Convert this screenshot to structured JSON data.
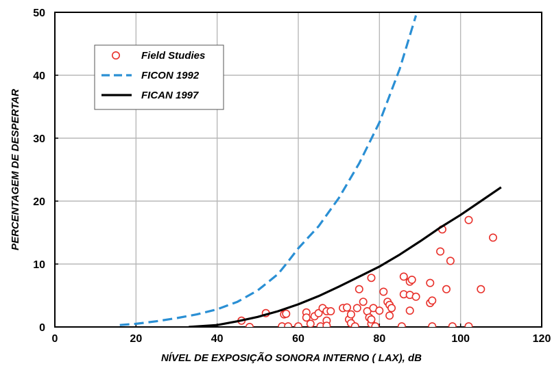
{
  "chart_data": {
    "type": "scatter",
    "xlabel": "NÍVEL DE EXPOSIÇÃO SONORA INTERNO ( LAX), dB",
    "ylabel": "PERCENTAGEM DE DESPERTAR",
    "xlim": [
      0,
      120
    ],
    "ylim": [
      0,
      50
    ],
    "xticks": [
      0,
      20,
      40,
      60,
      80,
      100,
      120
    ],
    "yticks": [
      0,
      10,
      20,
      30,
      40,
      50
    ],
    "grid": true,
    "legend_position": "top-left",
    "series": [
      {
        "name": "Field Studies",
        "kind": "scatter",
        "marker": "open-circle",
        "color": "#e8302a",
        "points": [
          [
            46,
            1.0
          ],
          [
            48,
            0.0
          ],
          [
            52,
            2.2
          ],
          [
            56,
            0.1
          ],
          [
            56.5,
            2.0
          ],
          [
            57,
            2.1
          ],
          [
            57.5,
            0.1
          ],
          [
            60,
            0.1
          ],
          [
            62,
            2.3
          ],
          [
            62,
            1.5
          ],
          [
            63,
            0.5
          ],
          [
            64,
            1.7
          ],
          [
            65,
            2.2
          ],
          [
            65.5,
            0.1
          ],
          [
            66,
            3.0
          ],
          [
            67,
            1.0
          ],
          [
            67,
            2.5
          ],
          [
            67,
            0.2
          ],
          [
            68,
            2.5
          ],
          [
            71,
            3.0
          ],
          [
            72,
            3.1
          ],
          [
            72.5,
            1.2
          ],
          [
            73,
            2.0
          ],
          [
            73,
            0.6
          ],
          [
            74,
            0.1
          ],
          [
            74.5,
            3.0
          ],
          [
            75,
            6.0
          ],
          [
            76,
            4.0
          ],
          [
            77,
            2.5
          ],
          [
            77.5,
            1.5
          ],
          [
            78,
            0.5
          ],
          [
            78,
            1.2
          ],
          [
            78,
            7.8
          ],
          [
            78.5,
            3.0
          ],
          [
            79,
            0.1
          ],
          [
            80,
            2.6
          ],
          [
            81,
            5.6
          ],
          [
            82,
            4.0
          ],
          [
            82.5,
            3.5
          ],
          [
            82.5,
            1.8
          ],
          [
            83,
            3.0
          ],
          [
            85.5,
            0.1
          ],
          [
            86,
            5.2
          ],
          [
            86,
            8.0
          ],
          [
            87.5,
            2.6
          ],
          [
            87.5,
            5.1
          ],
          [
            87.5,
            7.2
          ],
          [
            88,
            7.5
          ],
          [
            89,
            4.8
          ],
          [
            92.5,
            3.8
          ],
          [
            93,
            4.2
          ],
          [
            92.5,
            7.0
          ],
          [
            93,
            0.1
          ],
          [
            95,
            12.0
          ],
          [
            95.5,
            15.5
          ],
          [
            96.5,
            6.0
          ],
          [
            97.5,
            10.5
          ],
          [
            98,
            0.1
          ],
          [
            102,
            17.0
          ],
          [
            102,
            0.1
          ],
          [
            105,
            6.0
          ],
          [
            108,
            14.2
          ]
        ]
      },
      {
        "name": "FICON 1992",
        "kind": "line",
        "style": "dashed",
        "color": "#2a8fd4",
        "x": [
          16,
          20,
          25,
          30,
          35,
          40,
          45,
          50,
          55,
          57,
          60,
          65,
          70,
          75,
          80,
          85,
          89
        ],
        "y": [
          0.3,
          0.5,
          0.9,
          1.4,
          2.0,
          2.8,
          4.0,
          5.8,
          8.4,
          10.0,
          12.5,
          16.0,
          20.5,
          26.0,
          32.5,
          41.0,
          49.5
        ]
      },
      {
        "name": "FICAN 1997",
        "kind": "line",
        "style": "solid",
        "color": "#000000",
        "x": [
          33,
          40,
          45,
          50,
          55,
          60,
          65,
          70,
          75,
          80,
          85,
          90,
          95,
          100,
          105,
          110
        ],
        "y": [
          0.0,
          0.3,
          0.9,
          1.6,
          2.5,
          3.6,
          4.9,
          6.4,
          8.0,
          9.6,
          11.5,
          13.6,
          15.8,
          17.8,
          20.0,
          22.2
        ]
      }
    ]
  }
}
